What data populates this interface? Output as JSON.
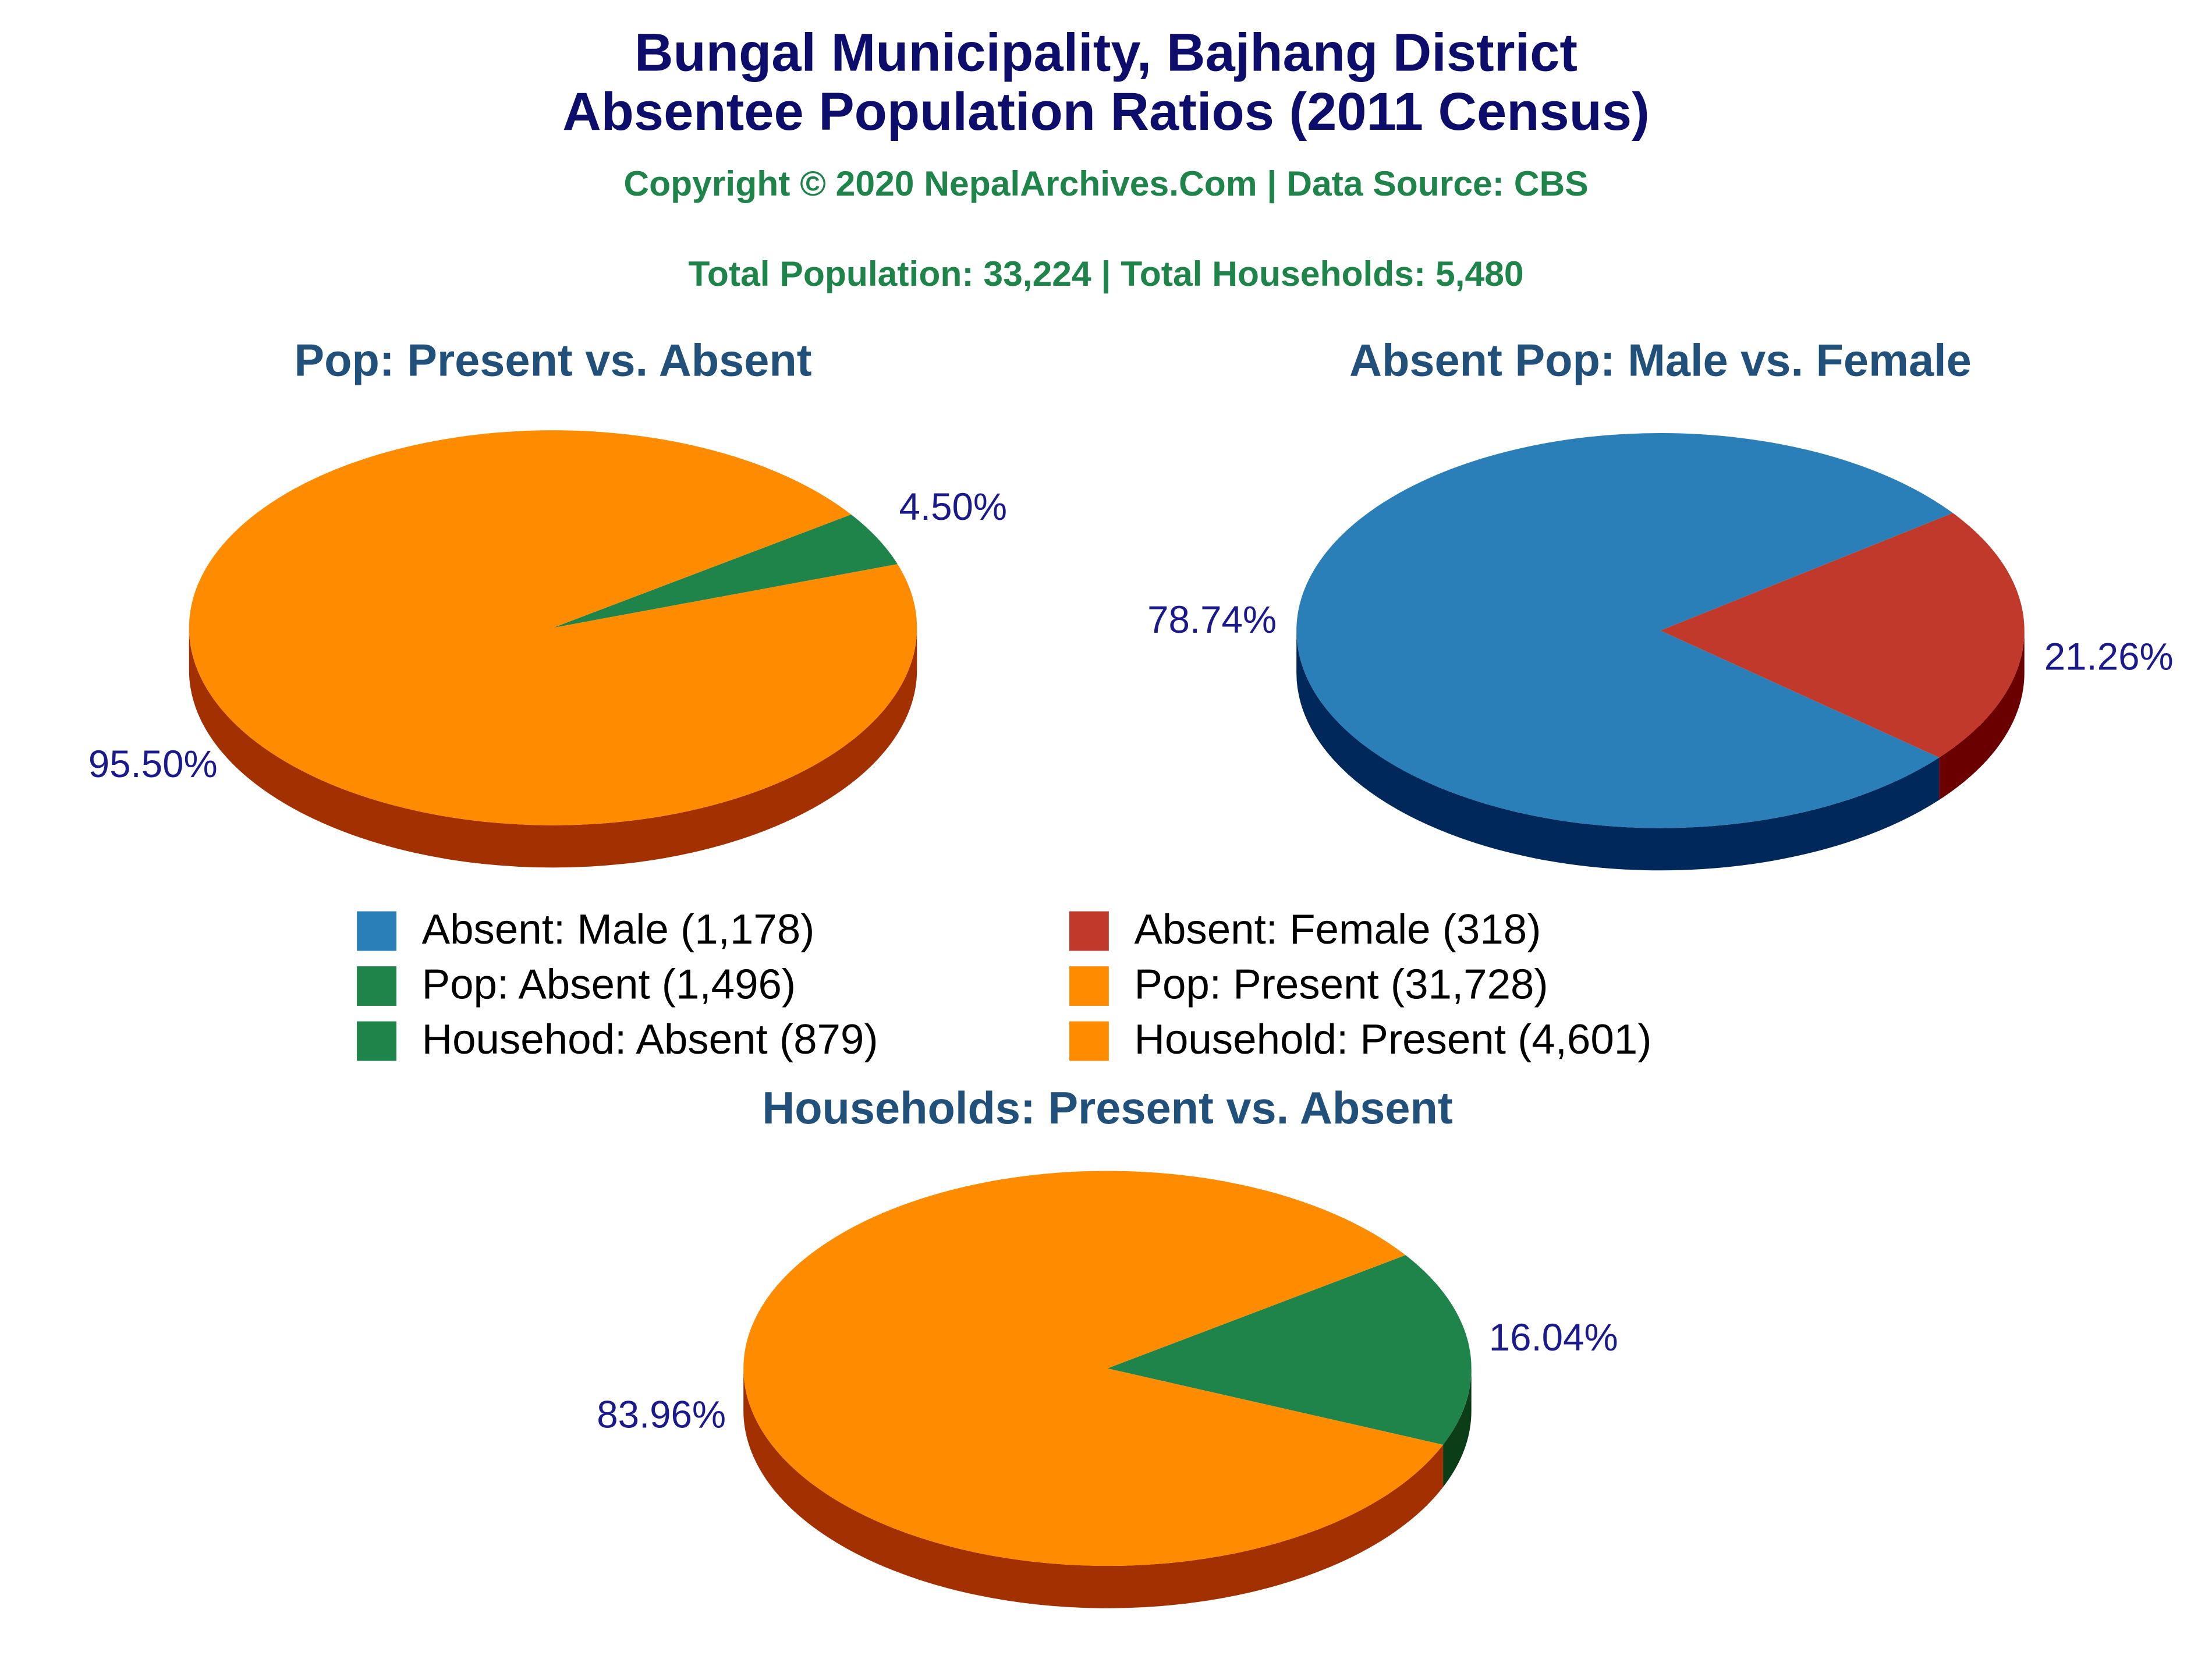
{
  "header": {
    "title_lines": [
      "Bungal Municipality, Bajhang District",
      "Absentee Population Ratios (2011 Census)"
    ],
    "copyright": "Copyright © 2020 NepalArchives.Com | Data Source: CBS",
    "totals": "Total Population: 33,224 | Total Households: 5,480"
  },
  "chart_data": [
    {
      "type": "pie",
      "title": "Pop: Present vs. Absent",
      "categories": [
        "Pop: Absent (1,496)",
        "Pop: Present (31,728)"
      ],
      "values": [
        4.5,
        95.5
      ],
      "value_labels": [
        "4.50%",
        "95.50%"
      ],
      "colors": [
        "#1e8449",
        "#ff8c00"
      ],
      "side_colors": [
        "#0b3d16",
        "#a33000"
      ]
    },
    {
      "type": "pie",
      "title": "Absent Pop: Male vs. Female",
      "categories": [
        "Absent: Male (1,178)",
        "Absent: Female (318)"
      ],
      "values": [
        78.74,
        21.26
      ],
      "value_labels": [
        "78.74%",
        "21.26%"
      ],
      "colors": [
        "#2a7fb8",
        "#c0392b"
      ],
      "side_colors": [
        "#00285a",
        "#6b0000"
      ]
    },
    {
      "type": "pie",
      "title": "Households: Present vs. Absent",
      "categories": [
        "Househod: Absent (879)",
        "Household: Present (4,601)"
      ],
      "values": [
        16.04,
        83.96
      ],
      "value_labels": [
        "16.04%",
        "83.96%"
      ],
      "colors": [
        "#1e8449",
        "#ff8c00"
      ],
      "side_colors": [
        "#0b3d16",
        "#a33000"
      ]
    }
  ]
}
